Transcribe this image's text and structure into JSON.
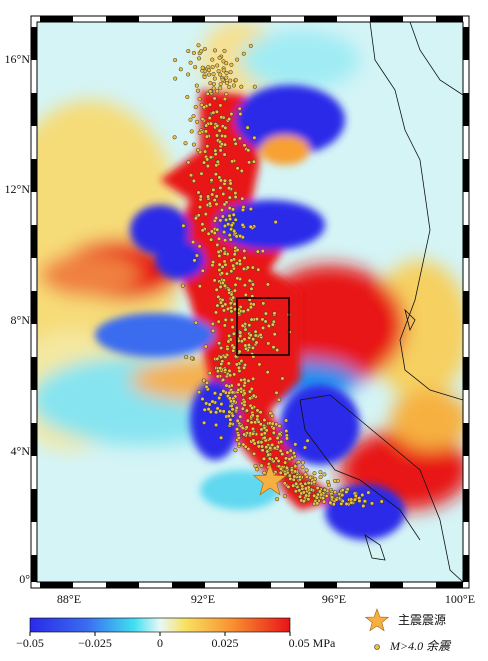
{
  "map": {
    "lat_labels": [
      "16°N",
      "12°N",
      "8°N",
      "4°N",
      "0°"
    ],
    "lon_labels": [
      "88°E",
      "92°E",
      "96°E",
      "100°E"
    ],
    "colorbar": {
      "labels": [
        "−0.05",
        "−0.025",
        "0",
        "0.025",
        "0.05 MPa"
      ]
    },
    "legend": [
      {
        "label": "主震震源"
      },
      {
        "label": "M>4.0 余震"
      }
    ]
  }
}
